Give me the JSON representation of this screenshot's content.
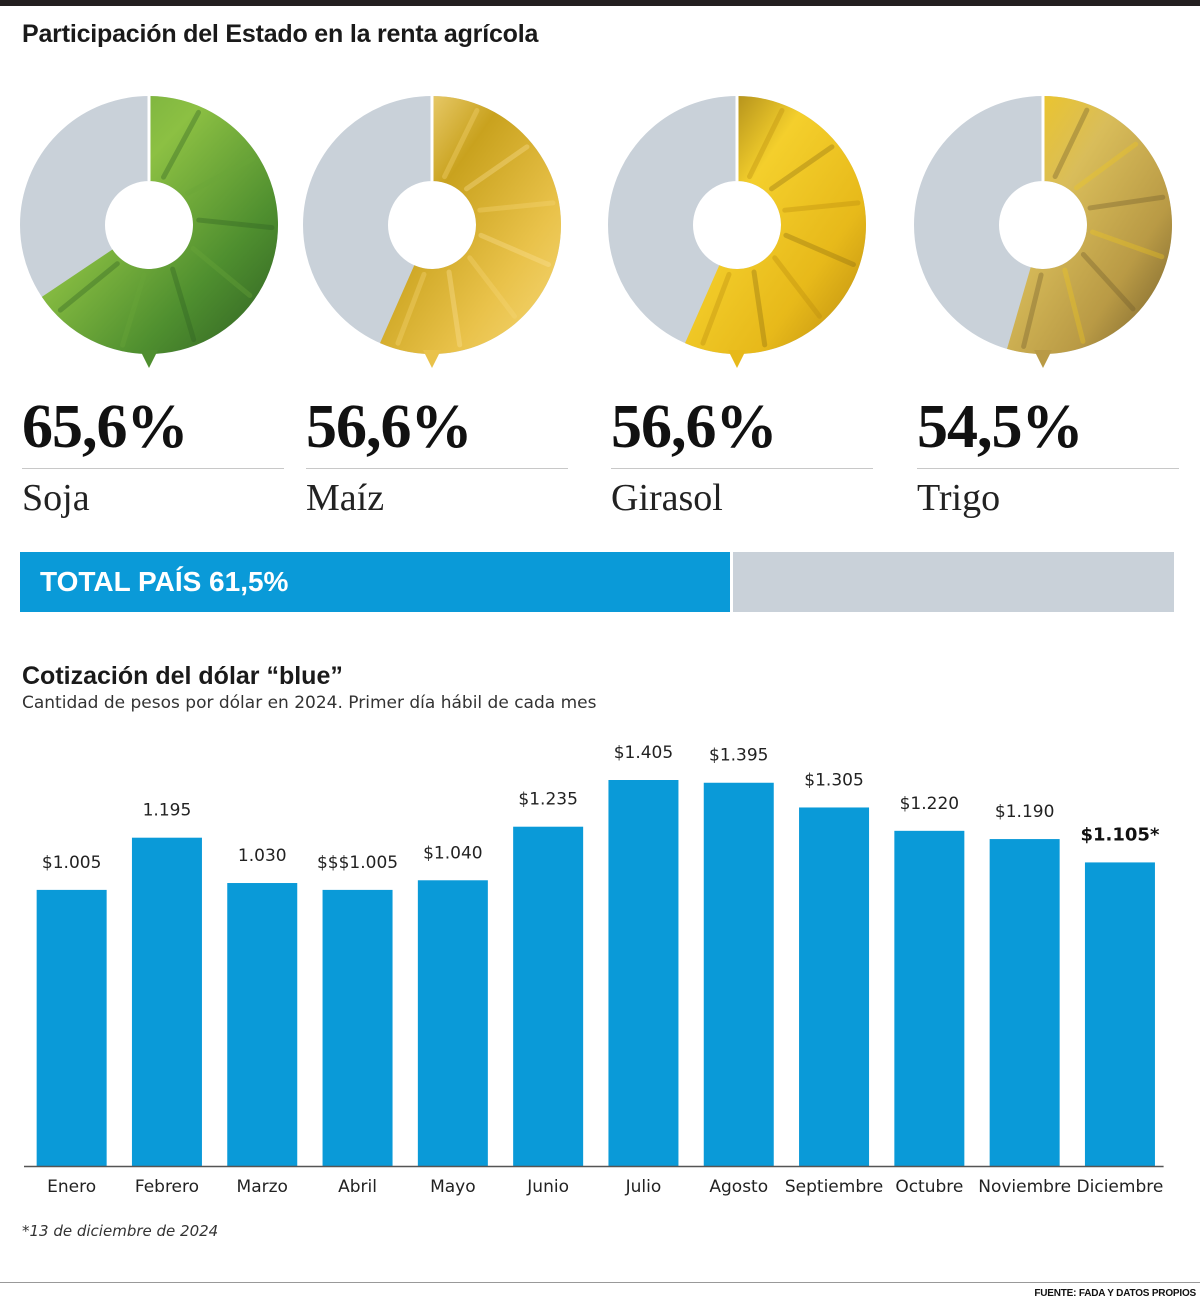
{
  "header": {
    "title": "Participación del Estado en la renta agrícola"
  },
  "crops": [
    {
      "pct_label": "65,6%",
      "name": "Soja",
      "share": 0.656,
      "colors": [
        "#2e5e22",
        "#4f8f2f",
        "#8cc043",
        "#6aa53a"
      ]
    },
    {
      "pct_label": "56,6%",
      "name": "Maíz",
      "share": 0.566,
      "colors": [
        "#f6d878",
        "#e9c24a",
        "#c9a21e",
        "#fbe39a"
      ]
    },
    {
      "pct_label": "56,6%",
      "name": "Girasol",
      "share": 0.566,
      "colors": [
        "#b8890f",
        "#e7b91a",
        "#f4cf2c",
        "#8a6a12"
      ]
    },
    {
      "pct_label": "54,5%",
      "name": "Trigo",
      "share": 0.545,
      "colors": [
        "#6e5a2a",
        "#b99a45",
        "#d9bd5a",
        "#f2c81c"
      ]
    }
  ],
  "total": {
    "label": "TOTAL PAÍS 61,5%",
    "value": 0.615
  },
  "chart_section": {
    "title": "Cotización del dólar “blue”",
    "subtitle": "Cantidad de pesos por dólar en 2024. Primer día hábil de cada mes",
    "footnote": "*13 de diciembre de 2024"
  },
  "chart_data": [
    {
      "type": "pie",
      "categories": [
        "Soja",
        "Maíz",
        "Girasol",
        "Trigo"
      ],
      "values": [
        65.6,
        56.6,
        56.6,
        54.5
      ],
      "title": "Participación del Estado en la renta agrícola"
    },
    {
      "type": "bar",
      "title": "Cotización del dólar “blue”",
      "subtitle": "Cantidad de pesos por dólar en 2024. Primer día hábil de cada mes",
      "categories": [
        "Enero",
        "Febrero",
        "Marzo",
        "Abril",
        "Mayo",
        "Junio",
        "Julio",
        "Agosto",
        "Septiembre",
        "Octubre",
        "Noviembre",
        "Diciembre"
      ],
      "values": [
        1005,
        1195,
        1030,
        1005,
        1040,
        1235,
        1405,
        1395,
        1305,
        1220,
        1190,
        1105
      ],
      "labels": [
        "$1.005",
        "1.195",
        "1.030",
        "$$$1.005",
        "$1.040",
        "$1.235",
        "$1.405",
        "$1.395",
        "$1.305",
        "$1.220",
        "$1.190",
        "$1.105*"
      ],
      "highlight_last": true,
      "bar_color": "#0a9ad8",
      "ylim": [
        0,
        1405
      ],
      "grid": false,
      "xlabel": "",
      "ylabel": ""
    }
  ],
  "source": "FUENTE: FADA Y DATOS PROPIOS",
  "colors": {
    "accent": "#0a9ad8",
    "rest": "#c9d1d9"
  }
}
